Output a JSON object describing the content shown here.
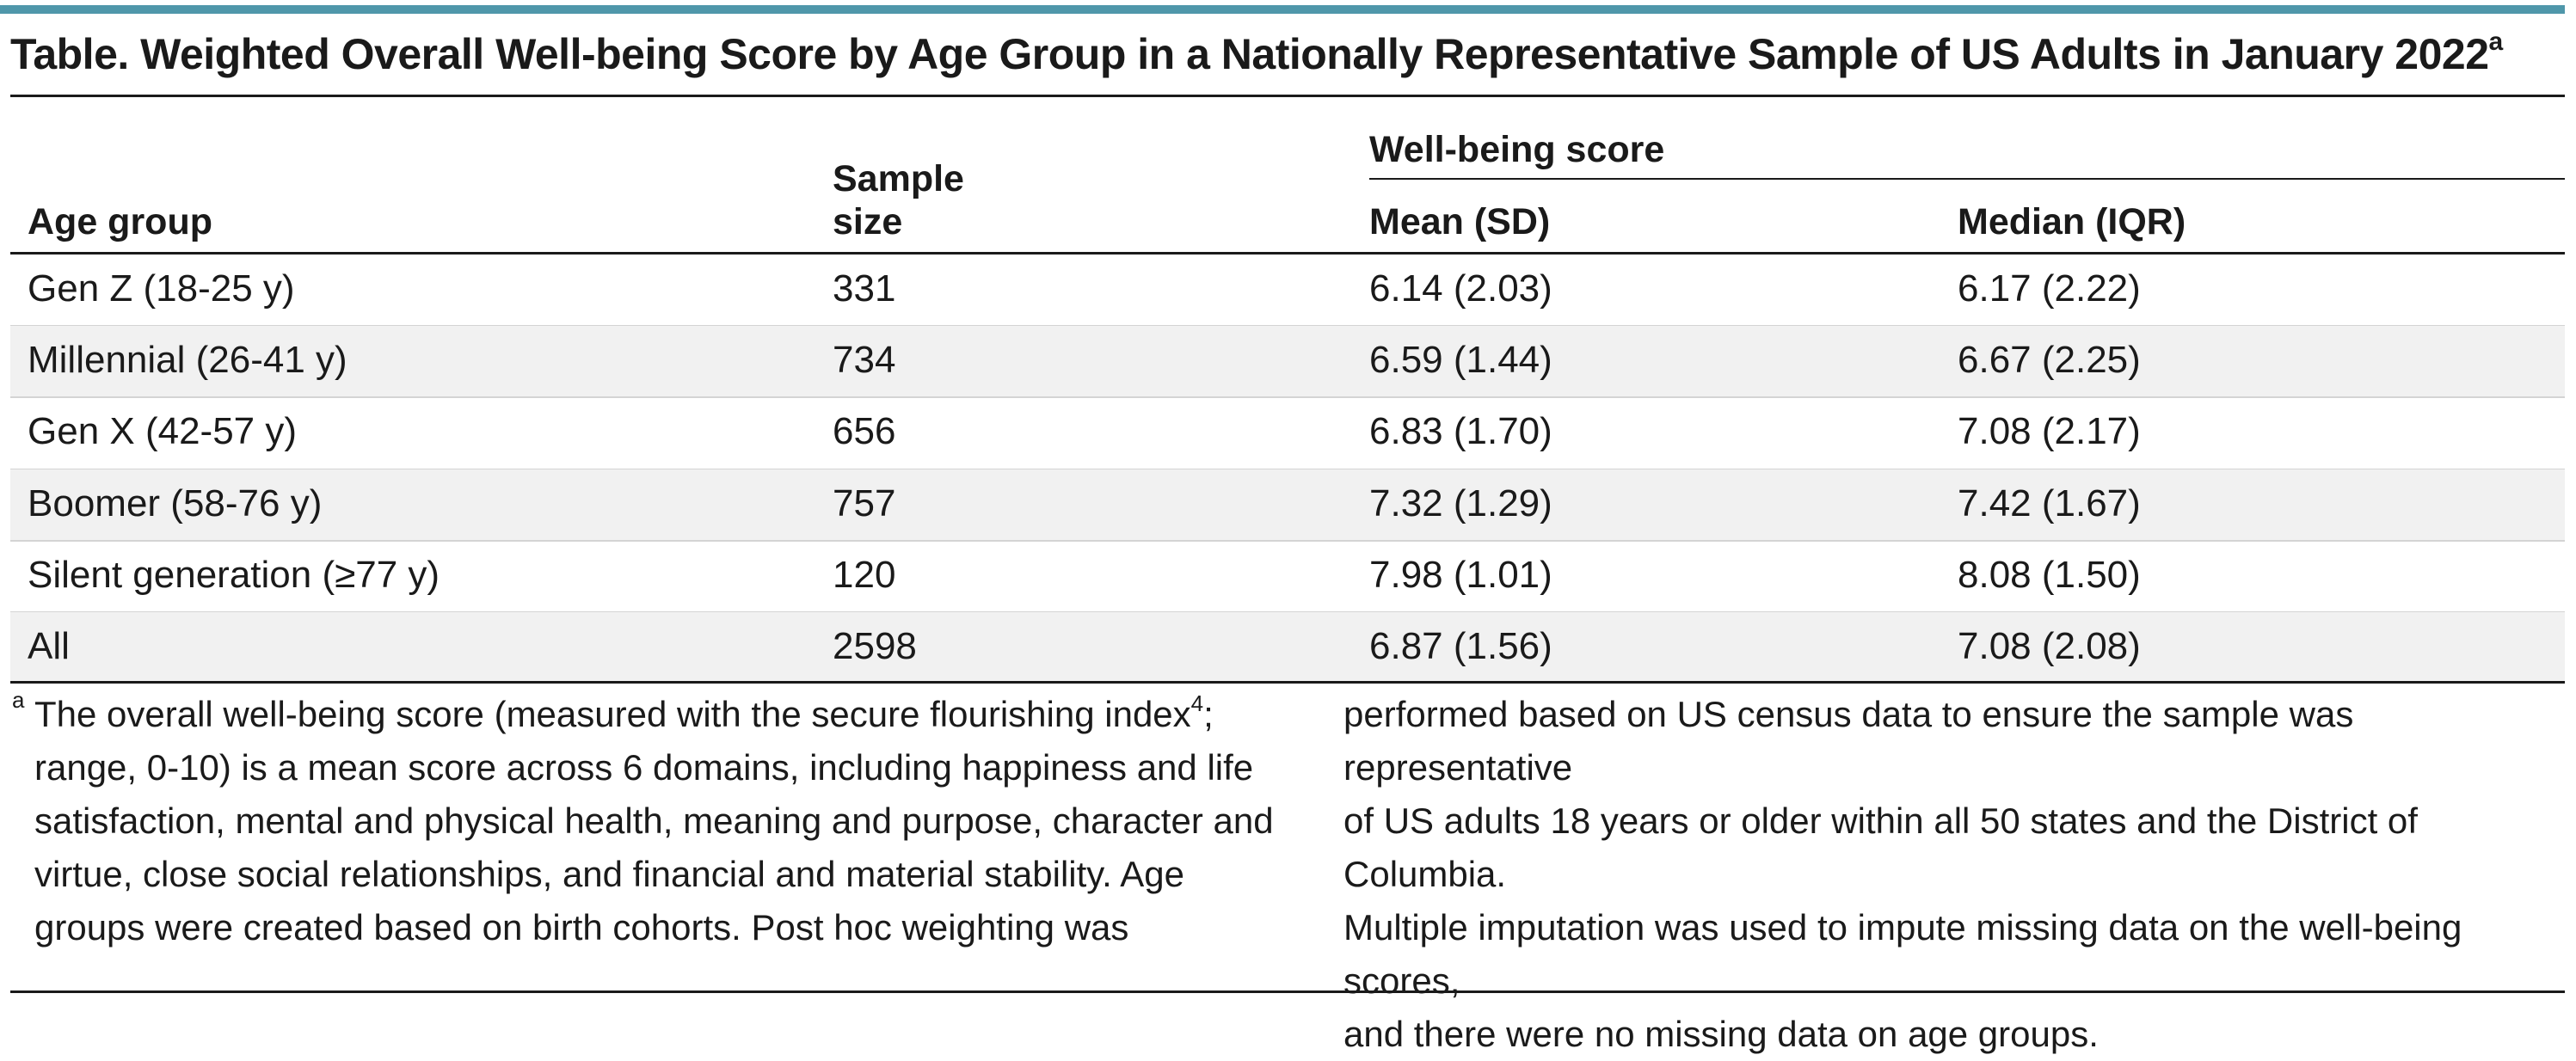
{
  "title": {
    "text": "Table. Weighted Overall Well-being Score by Age Group in a Nationally Representative Sample of US Adults in January 2022",
    "sup": "a"
  },
  "table": {
    "headers": {
      "age_group": "Age group",
      "sample_size_line1": "Sample",
      "sample_size_line2": "size",
      "wellbeing_group": "Well-being score",
      "mean": "Mean (SD)",
      "median": "Median (IQR)"
    },
    "rows": [
      {
        "age_group": "Gen Z (18-25 y)",
        "sample_size": "331",
        "mean": "6.14 (2.03)",
        "median": "6.17 (2.22)"
      },
      {
        "age_group": "Millennial (26-41 y)",
        "sample_size": "734",
        "mean": "6.59 (1.44)",
        "median": "6.67 (2.25)"
      },
      {
        "age_group": "Gen X (42-57 y)",
        "sample_size": "656",
        "mean": "6.83 (1.70)",
        "median": "7.08 (2.17)"
      },
      {
        "age_group": "Boomer (58-76 y)",
        "sample_size": "757",
        "mean": "7.32 (1.29)",
        "median": "7.42 (1.67)"
      },
      {
        "age_group": "Silent generation (≥77 y)",
        "sample_size": "120",
        "mean": "7.98 (1.01)",
        "median": "8.08 (1.50)"
      },
      {
        "age_group": "All",
        "sample_size": "2598",
        "mean": "6.87 (1.56)",
        "median": "7.08 (2.08)"
      }
    ]
  },
  "footnote": {
    "marker": "a",
    "left_lines": [
      "The overall well-being score (measured with the secure flourishing index",
      "range, 0-10) is a mean score across 6 domains, including happiness and life",
      "satisfaction, mental and physical health, meaning and purpose, character and",
      "virtue, close social relationships, and financial and material stability. Age",
      "groups were created based on birth cohorts. Post hoc weighting was"
    ],
    "ref_sup": "4",
    "ref_after": ";",
    "right_lines": [
      "performed based on US census data to ensure the sample was representative",
      "of US adults 18 years or older within all 50 states and the District of Columbia.",
      "Multiple imputation was used to impute missing data on the well-being scores,",
      "and there were no missing data on age groups."
    ]
  },
  "colors": {
    "accent_rule": "#4f97aa",
    "row_shade": "#f1f1f1",
    "text": "#1a1a1a"
  }
}
